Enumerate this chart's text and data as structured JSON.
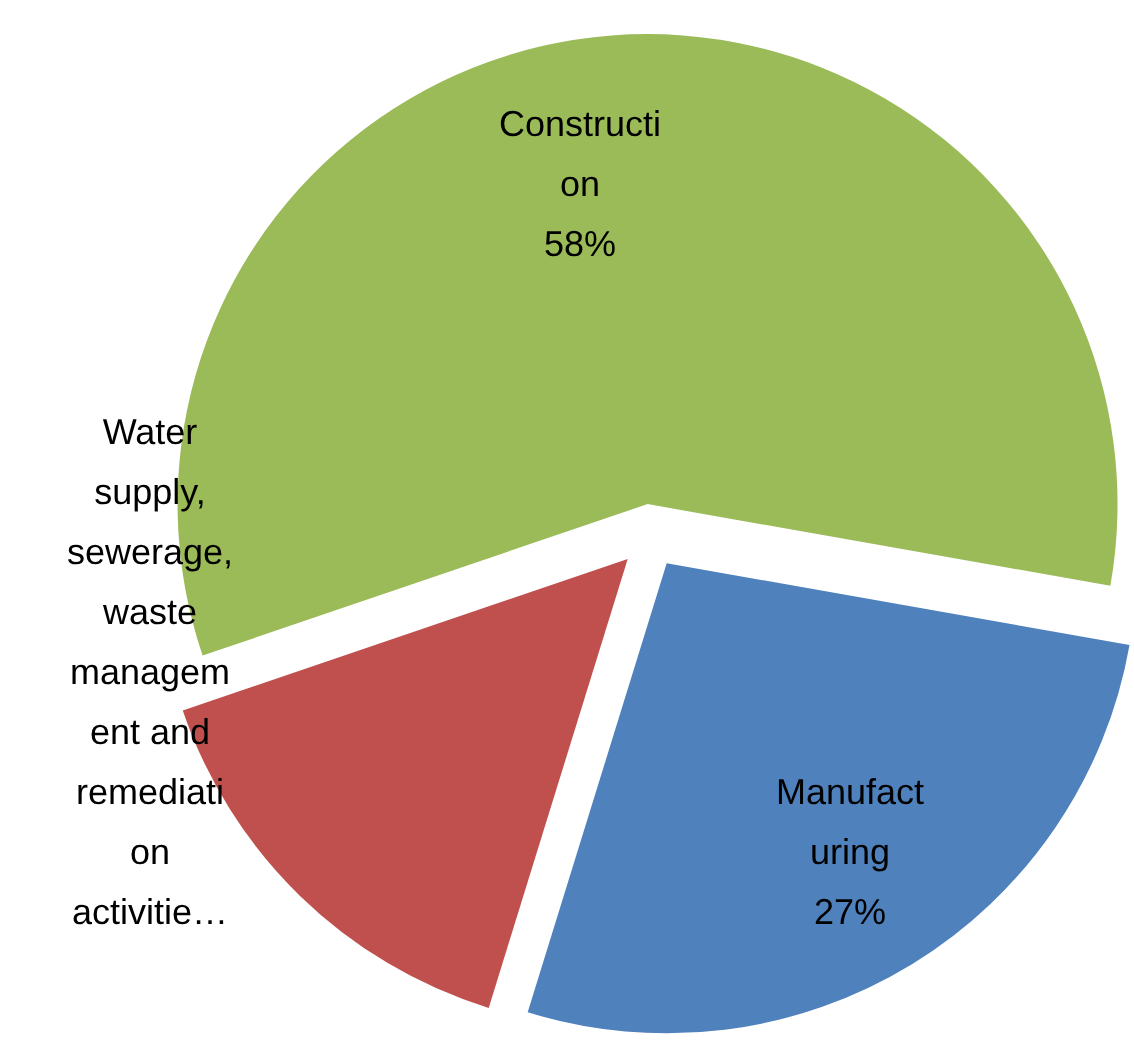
{
  "chart_data": {
    "type": "pie",
    "categories": [
      "Manufacturing",
      "Water supply, sewerage, waste management and remediation activitie…",
      "Construction"
    ],
    "values": [
      27,
      15,
      58
    ],
    "colors": [
      "#4f81bd",
      "#c0504d",
      "#9bbb59"
    ],
    "value_labels": [
      "27%",
      null,
      "58%"
    ]
  }
}
